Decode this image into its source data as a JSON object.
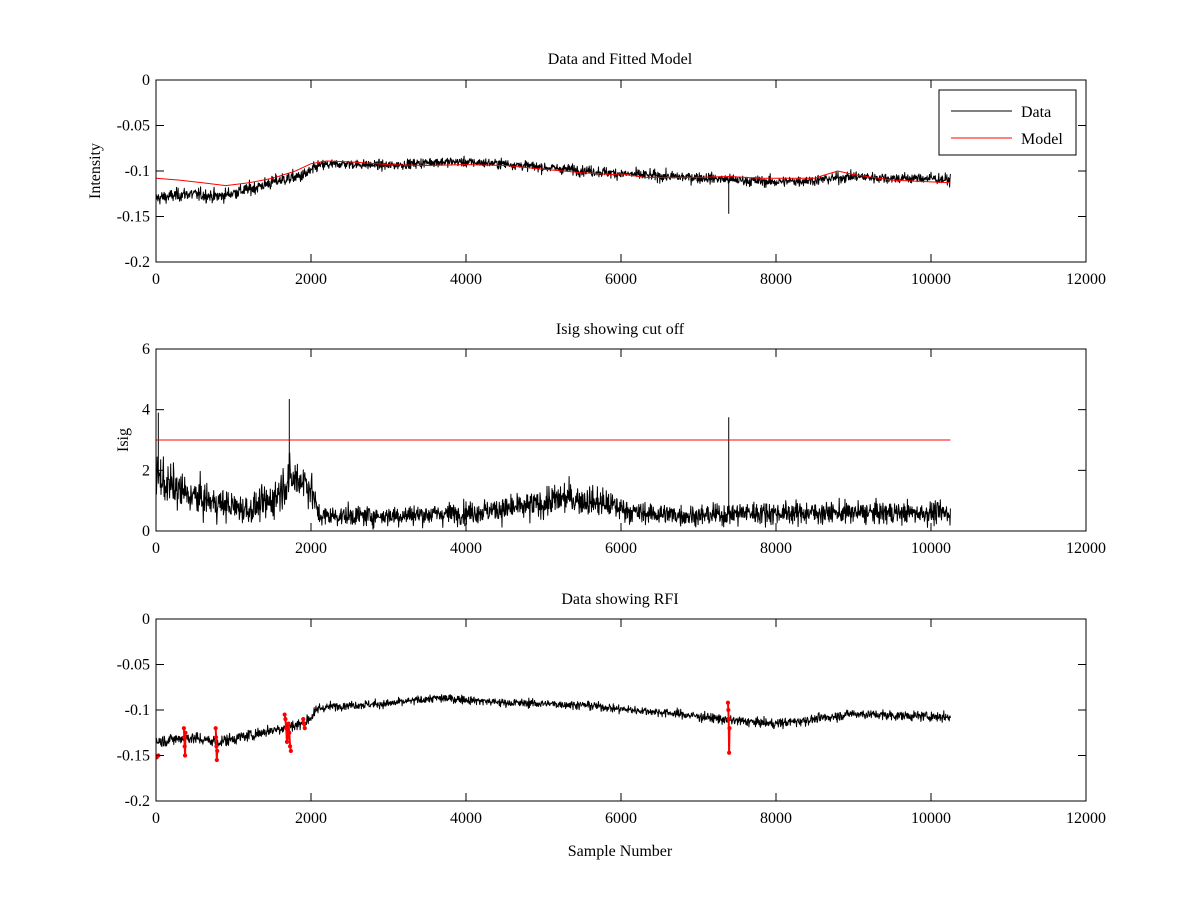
{
  "chart_data": [
    {
      "type": "line",
      "title": "Data and Fitted Model",
      "xlabel": "",
      "ylabel": "Intensity",
      "xlim": [
        0,
        12000
      ],
      "ylim": [
        -0.2,
        0
      ],
      "xticks": [
        0,
        2000,
        4000,
        6000,
        8000,
        10000,
        12000
      ],
      "yticks": [
        0,
        -0.05,
        -0.1,
        -0.15,
        -0.2
      ],
      "xtick_labels": [
        "0",
        "2000",
        "4000",
        "6000",
        "8000",
        "10000",
        "12000"
      ],
      "ytick_labels": [
        "0",
        "-0.05",
        "-0.1",
        "-0.15",
        "-0.2"
      ],
      "legend_position": "top-right",
      "series": [
        {
          "name": "Data",
          "color": "#000000",
          "style": "noisy",
          "x": [
            0,
            400,
            800,
            1200,
            1600,
            1900,
            2000,
            2100,
            2400,
            3000,
            3600,
            3900,
            4500,
            5000,
            5600,
            6000,
            6600,
            7000,
            7500,
            8000,
            8500,
            9000,
            9500,
            10000,
            10250
          ],
          "y": [
            -0.13,
            -0.125,
            -0.128,
            -0.12,
            -0.11,
            -0.105,
            -0.1,
            -0.094,
            -0.092,
            -0.094,
            -0.09,
            -0.09,
            -0.092,
            -0.096,
            -0.1,
            -0.103,
            -0.106,
            -0.107,
            -0.11,
            -0.112,
            -0.11,
            -0.106,
            -0.108,
            -0.108,
            -0.11
          ],
          "noise": [
            0.011,
            0.011,
            0.011,
            0.011,
            0.011,
            0.011,
            0.011,
            0.009,
            0.008,
            0.008,
            0.008,
            0.008,
            0.008,
            0.008,
            0.009,
            0.009,
            0.009,
            0.009,
            0.009,
            0.009,
            0.009,
            0.009,
            0.009,
            0.009,
            0.009
          ],
          "spikes": [
            {
              "x": 7390,
              "y": -0.147
            }
          ]
        },
        {
          "name": "Model",
          "color": "#ff0000",
          "style": "line",
          "x": [
            0,
            300,
            600,
            900,
            1200,
            1500,
            1800,
            2000,
            2200,
            2500,
            3000,
            3500,
            4000,
            4500,
            5000,
            5500,
            5900,
            6000,
            6300,
            7000,
            7400,
            7800,
            8200,
            8500,
            8600,
            8800,
            9000,
            9500,
            10000,
            10250
          ],
          "y": [
            -0.108,
            -0.11,
            -0.113,
            -0.116,
            -0.113,
            -0.108,
            -0.1,
            -0.092,
            -0.089,
            -0.09,
            -0.093,
            -0.094,
            -0.093,
            -0.094,
            -0.098,
            -0.102,
            -0.104,
            -0.103,
            -0.107,
            -0.107,
            -0.106,
            -0.108,
            -0.108,
            -0.108,
            -0.105,
            -0.1,
            -0.104,
            -0.11,
            -0.112,
            -0.113
          ]
        }
      ]
    },
    {
      "type": "line",
      "title": "Isig showing cut off",
      "xlabel": "",
      "ylabel": "Isig",
      "xlim": [
        0,
        12000
      ],
      "ylim": [
        0,
        6
      ],
      "xticks": [
        0,
        2000,
        4000,
        6000,
        8000,
        10000,
        12000
      ],
      "yticks": [
        0,
        2,
        4,
        6
      ],
      "xtick_labels": [
        "0",
        "2000",
        "4000",
        "6000",
        "8000",
        "10000",
        "12000"
      ],
      "ytick_labels": [
        "0",
        "2",
        "4",
        "6"
      ],
      "series": [
        {
          "name": "Isig",
          "color": "#000000",
          "style": "noisy-positive",
          "x": [
            0,
            100,
            400,
            800,
            1200,
            1500,
            1700,
            1900,
            2000,
            2100,
            3000,
            4000,
            4800,
            5300,
            5800,
            6200,
            7000,
            7600,
            8000,
            9000,
            10000,
            10250
          ],
          "y": [
            1.9,
            1.6,
            1.2,
            0.9,
            0.7,
            1.0,
            1.7,
            1.7,
            1.4,
            0.5,
            0.5,
            0.6,
            0.8,
            1.1,
            0.9,
            0.6,
            0.5,
            0.6,
            0.6,
            0.6,
            0.6,
            0.6
          ],
          "noise": [
            1.2,
            1.1,
            0.9,
            0.8,
            0.7,
            0.9,
            1.2,
            1.1,
            0.9,
            0.5,
            0.5,
            0.55,
            0.7,
            0.8,
            0.7,
            0.55,
            0.5,
            0.6,
            0.55,
            0.55,
            0.55,
            0.55
          ],
          "spikes": [
            {
              "x": 1720,
              "y": 4.35
            },
            {
              "x": 7390,
              "y": 3.75
            },
            {
              "x": 30,
              "y": 3.9
            }
          ]
        },
        {
          "name": "Cut off",
          "color": "#ff0000",
          "style": "line",
          "x": [
            0,
            10250
          ],
          "y": [
            3,
            3
          ]
        }
      ]
    },
    {
      "type": "line",
      "title": "Data showing RFI",
      "xlabel": "Sample Number",
      "ylabel": "",
      "xlim": [
        0,
        12000
      ],
      "ylim": [
        -0.2,
        0
      ],
      "xticks": [
        0,
        2000,
        4000,
        6000,
        8000,
        10000,
        12000
      ],
      "yticks": [
        0,
        -0.05,
        -0.1,
        -0.15,
        -0.2
      ],
      "xtick_labels": [
        "0",
        "2000",
        "4000",
        "6000",
        "8000",
        "10000",
        "12000"
      ],
      "ytick_labels": [
        "0",
        "-0.05",
        "-0.1",
        "-0.15",
        "-0.2"
      ],
      "series": [
        {
          "name": "Data",
          "color": "#000000",
          "style": "noisy",
          "x": [
            0,
            400,
            800,
            1200,
            1600,
            1900,
            2000,
            2100,
            2400,
            3000,
            3600,
            3900,
            4500,
            5000,
            5600,
            6000,
            6600,
            7000,
            7500,
            8000,
            8500,
            9000,
            9500,
            10000,
            10250
          ],
          "y": [
            -0.135,
            -0.13,
            -0.135,
            -0.128,
            -0.12,
            -0.115,
            -0.108,
            -0.098,
            -0.095,
            -0.093,
            -0.087,
            -0.088,
            -0.092,
            -0.093,
            -0.095,
            -0.099,
            -0.103,
            -0.107,
            -0.112,
            -0.115,
            -0.11,
            -0.104,
            -0.106,
            -0.107,
            -0.108
          ],
          "noise": [
            0.01,
            0.01,
            0.01,
            0.01,
            0.01,
            0.01,
            0.01,
            0.008,
            0.007,
            0.007,
            0.007,
            0.007,
            0.007,
            0.007,
            0.007,
            0.007,
            0.007,
            0.008,
            0.008,
            0.008,
            0.008,
            0.008,
            0.008,
            0.008,
            0.008
          ]
        },
        {
          "name": "RFI",
          "color": "#ff0000",
          "style": "markers",
          "x": [
            10,
            30,
            360,
            365,
            370,
            375,
            380,
            770,
            775,
            780,
            785,
            790,
            1660,
            1670,
            1680,
            1690,
            1700,
            1710,
            1720,
            1730,
            1740,
            1900,
            1910,
            1920,
            7380,
            7385,
            7390,
            7395,
            7400
          ],
          "y": [
            -0.152,
            -0.15,
            -0.12,
            -0.13,
            -0.14,
            -0.15,
            -0.125,
            -0.12,
            -0.13,
            -0.14,
            -0.155,
            -0.145,
            -0.105,
            -0.11,
            -0.12,
            -0.135,
            -0.13,
            -0.115,
            -0.125,
            -0.14,
            -0.145,
            -0.11,
            -0.115,
            -0.12,
            -0.092,
            -0.1,
            -0.11,
            -0.147,
            -0.12
          ]
        }
      ]
    }
  ]
}
